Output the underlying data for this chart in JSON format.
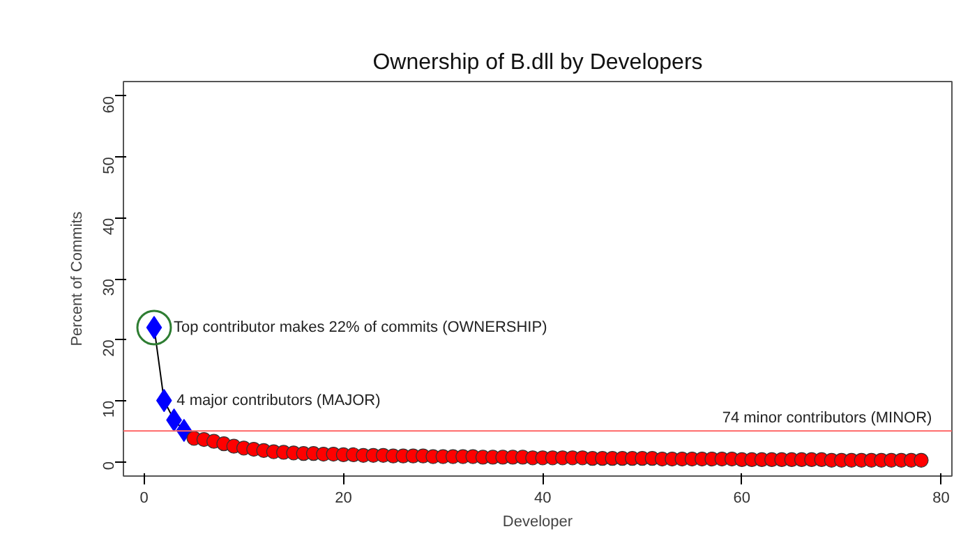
{
  "chart_data": {
    "type": "scatter",
    "title": "Ownership of B.dll by Developers",
    "xlabel": "Developer",
    "ylabel": "Percent of Commits",
    "xlim": [
      -2.08,
      81.08
    ],
    "ylim": [
      -2.4,
      62.4
    ],
    "xticks": [
      0,
      20,
      40,
      60,
      80
    ],
    "yticks": [
      0,
      10,
      20,
      30,
      40,
      50,
      60
    ],
    "grid": false,
    "series": [
      {
        "type": "line",
        "color": "#000000",
        "marker": "none",
        "line_style": "solid",
        "x": [
          1,
          2,
          3,
          4,
          5
        ],
        "values": [
          22,
          10,
          6.8,
          5.1,
          3.8
        ]
      },
      {
        "color": "#0000ff",
        "marker": "diamond",
        "x": [
          1,
          2,
          3,
          4
        ],
        "values": [
          22,
          10,
          6.8,
          5.1
        ]
      },
      {
        "color": "#ff0000",
        "marker": "circle",
        "x": [
          5,
          6,
          7,
          8,
          9,
          10,
          11,
          12,
          13,
          14,
          15,
          16,
          17,
          18,
          19,
          20,
          21,
          22,
          23,
          24,
          25,
          26,
          27,
          28,
          29,
          30,
          31,
          32,
          33,
          34,
          35,
          36,
          37,
          38,
          39,
          40,
          41,
          42,
          43,
          44,
          45,
          46,
          47,
          48,
          49,
          50,
          51,
          52,
          53,
          54,
          55,
          56,
          57,
          58,
          59,
          60,
          61,
          62,
          63,
          64,
          65,
          66,
          67,
          68,
          69,
          70,
          71,
          72,
          73,
          74,
          75,
          76,
          77,
          78
        ],
        "values": [
          3.8,
          3.6,
          3.3,
          2.9,
          2.5,
          2.2,
          2.0,
          1.8,
          1.6,
          1.5,
          1.4,
          1.3,
          1.3,
          1.2,
          1.2,
          1.1,
          1.1,
          1.0,
          1.0,
          1.0,
          0.9,
          0.9,
          0.9,
          0.9,
          0.8,
          0.8,
          0.8,
          0.8,
          0.8,
          0.7,
          0.7,
          0.7,
          0.7,
          0.7,
          0.6,
          0.6,
          0.6,
          0.6,
          0.6,
          0.6,
          0.5,
          0.5,
          0.5,
          0.5,
          0.5,
          0.5,
          0.5,
          0.4,
          0.4,
          0.4,
          0.4,
          0.4,
          0.4,
          0.4,
          0.4,
          0.3,
          0.3,
          0.3,
          0.3,
          0.3,
          0.3,
          0.3,
          0.3,
          0.3,
          0.2,
          0.2,
          0.2,
          0.2,
          0.2,
          0.2,
          0.2,
          0.2,
          0.2,
          0.2
        ]
      }
    ],
    "ref_lines": [
      {
        "axis": "y",
        "value": 5,
        "color": "#ff6666",
        "label": "74 minor contributors (MINOR)"
      }
    ],
    "annotations": [
      {
        "text": "Top contributor makes 22% of commits (OWNERSHIP)",
        "x": 1,
        "y": 22
      },
      {
        "text": "4 major contributors (MAJOR)",
        "x": 2,
        "y": 10
      }
    ]
  }
}
